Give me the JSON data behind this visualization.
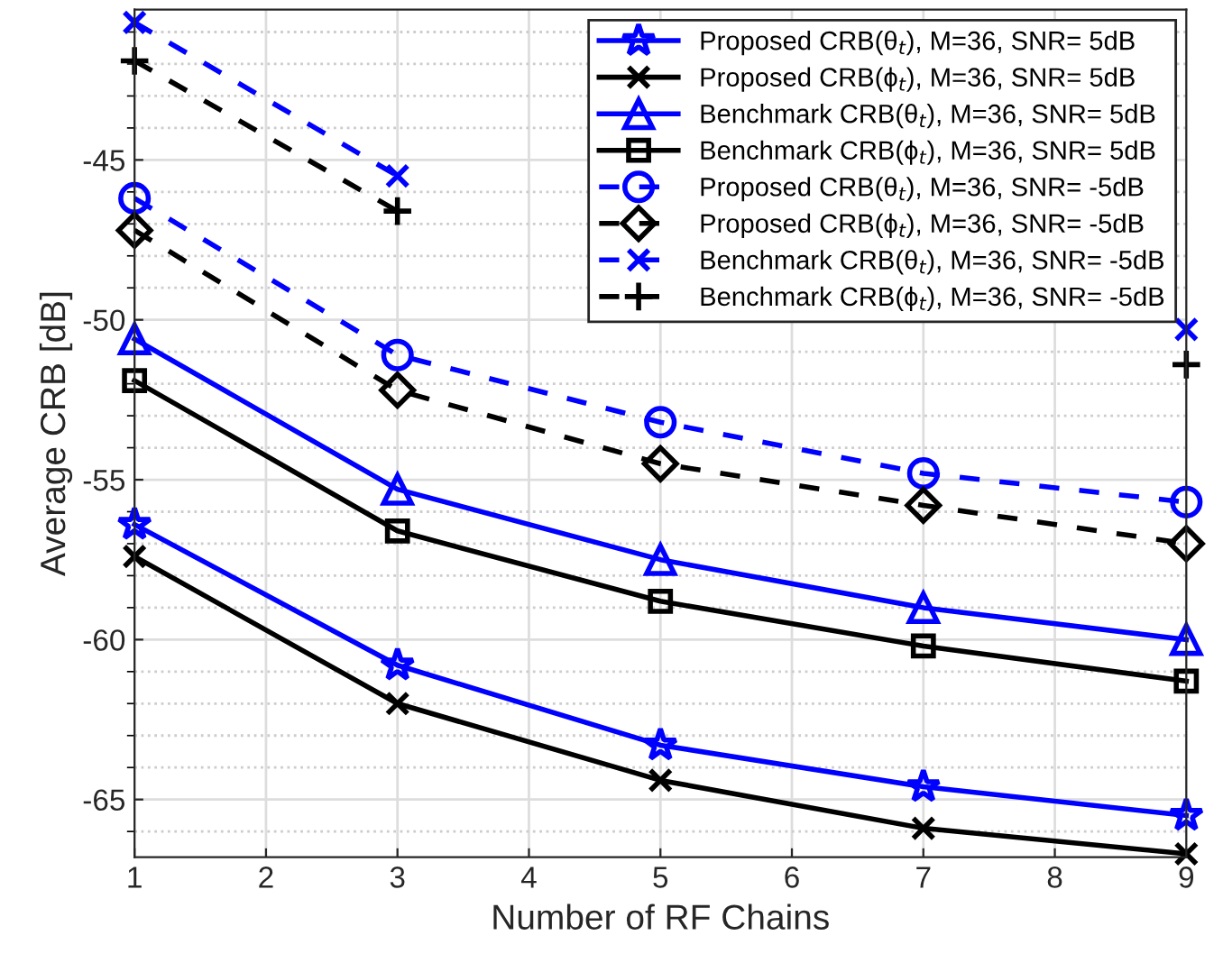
{
  "chart_data": {
    "type": "line",
    "xlabel": "Number of RF Chains",
    "ylabel": "Average CRB [dB]",
    "x": [
      1,
      3,
      5,
      7,
      9
    ],
    "series": [
      {
        "name": "Proposed CRB(θ$_{t}$), M=36, SNR= 5dB",
        "color": "#0000ff",
        "marker": "star",
        "line_style": "solid",
        "values": [
          -56.4,
          -60.8,
          -63.3,
          -64.6,
          -65.5
        ]
      },
      {
        "name": "Proposed CRB(ϕ$_{t}$), M=36, SNR= 5dB",
        "color": "#000000",
        "marker": "cross",
        "line_style": "solid",
        "values": [
          -57.4,
          -62.0,
          -64.4,
          -65.9,
          -66.7
        ]
      },
      {
        "name": "Benchmark CRB(θ$_{t}$), M=36, SNR= 5dB",
        "color": "#0000ff",
        "marker": "triangle",
        "line_style": "solid",
        "values": [
          -50.6,
          -55.3,
          -57.5,
          -59.0,
          -60.0
        ]
      },
      {
        "name": "Benchmark CRB(ϕ$_{t}$), M=36, SNR= 5dB",
        "color": "#000000",
        "marker": "square",
        "line_style": "solid",
        "values": [
          -51.9,
          -56.6,
          -58.8,
          -60.2,
          -61.3
        ]
      },
      {
        "name": "Proposed CRB(θ$_{t}$), M=36, SNR= -5dB",
        "color": "#0000ff",
        "marker": "circle",
        "line_style": "dashed",
        "values": [
          -46.2,
          -51.1,
          -53.2,
          -54.8,
          -55.7
        ]
      },
      {
        "name": "Proposed CRB(ϕ$_{t}$), M=36, SNR= -5dB",
        "color": "#000000",
        "marker": "diamond",
        "line_style": "dashed",
        "values": [
          -47.2,
          -52.2,
          -54.5,
          -55.8,
          -57.0
        ]
      },
      {
        "name": "Benchmark CRB(θ$_{t}$), M=36, SNR= -5dB",
        "color": "#0000ff",
        "marker": "cross",
        "line_style": "dashed",
        "values": [
          -40.7,
          -45.5,
          null,
          null,
          -50.3
        ]
      },
      {
        "name": "Benchmark CRB(ϕ$_{t}$), M=36, SNR= -5dB",
        "color": "#000000",
        "marker": "plus",
        "line_style": "dashed",
        "values": [
          -41.9,
          -46.6,
          null,
          null,
          -51.4
        ]
      }
    ],
    "xlim": [
      1,
      9
    ],
    "xticks": [
      1,
      2,
      3,
      4,
      5,
      6,
      7,
      8,
      9
    ],
    "ylim": [
      -66.8,
      -40.3
    ],
    "yticks": [
      {
        "value": -41,
        "label": null
      },
      {
        "value": -42,
        "label": null
      },
      {
        "value": -43,
        "label": null
      },
      {
        "value": -44,
        "label": null
      },
      -45,
      {
        "value": -46,
        "label": null
      },
      {
        "value": -47,
        "label": null
      },
      {
        "value": -48,
        "label": null
      },
      {
        "value": -49,
        "label": null
      },
      -50,
      {
        "value": -51,
        "label": null
      },
      {
        "value": -52,
        "label": null
      },
      {
        "value": -53,
        "label": null
      },
      {
        "value": -54,
        "label": null
      },
      -55,
      {
        "value": -56,
        "label": null
      },
      {
        "value": -57,
        "label": null
      },
      {
        "value": -58,
        "label": null
      },
      {
        "value": -59,
        "label": null
      },
      -60,
      {
        "value": -61,
        "label": null
      },
      {
        "value": -62,
        "label": null
      },
      {
        "value": -63,
        "label": null
      },
      {
        "value": -64,
        "label": null
      },
      -65,
      {
        "value": -66,
        "label": null
      }
    ],
    "grid": true,
    "legend": "top right"
  }
}
